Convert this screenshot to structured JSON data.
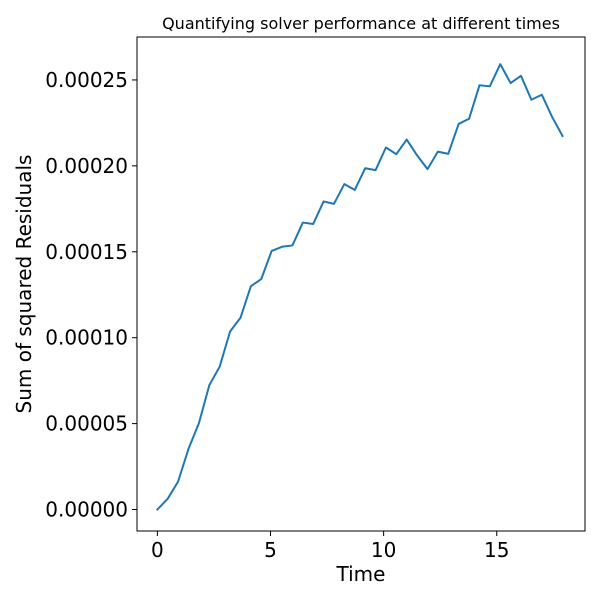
{
  "chart_data": {
    "type": "line",
    "title": "Quantifying solver performance at different times",
    "xlabel": "Time",
    "ylabel": "Sum of squared Residuals",
    "xlim": [
      -0.9,
      18.9
    ],
    "ylim": [
      -1.25e-05,
      0.000275
    ],
    "xticks": [
      0,
      5,
      10,
      15
    ],
    "xtick_labels": [
      "0",
      "5",
      "10",
      "15"
    ],
    "yticks": [
      0,
      5e-05,
      0.0001,
      0.00015,
      0.0002,
      0.00025
    ],
    "ytick_labels": [
      "0.00000",
      "0.00005",
      "0.00010",
      "0.00015",
      "0.00020",
      "0.00025"
    ],
    "grid": false,
    "series": [
      {
        "color": "#1f77b4",
        "x": [
          0,
          0.459,
          0.918,
          1.378,
          1.837,
          2.296,
          2.755,
          3.214,
          3.673,
          4.133,
          4.592,
          5.051,
          5.51,
          5.969,
          6.429,
          6.888,
          7.347,
          7.806,
          8.265,
          8.724,
          9.184,
          9.643,
          10.102,
          10.561,
          11.02,
          11.48,
          11.939,
          12.398,
          12.857,
          13.316,
          13.776,
          14.235,
          14.694,
          15.153,
          15.612,
          16.071,
          16.531,
          16.99,
          17.449,
          17.908
        ],
        "y": [
          0,
          6.3e-06,
          1.63e-05,
          3.54e-05,
          5.03e-05,
          7.23e-05,
          8.32e-05,
          0.0001036,
          0.0001116,
          0.00013,
          0.0001341,
          0.0001505,
          0.0001529,
          0.0001537,
          0.000167,
          0.0001662,
          0.0001793,
          0.0001779,
          0.0001894,
          0.000186,
          0.0001986,
          0.0001975,
          0.0002107,
          0.0002068,
          0.0002153,
          0.0002061,
          0.0001981,
          0.0002083,
          0.000207,
          0.0002244,
          0.0002274,
          0.0002469,
          0.0002463,
          0.0002592,
          0.0002482,
          0.0002524,
          0.0002385,
          0.0002414,
          0.0002284,
          0.0002174
        ]
      }
    ]
  }
}
